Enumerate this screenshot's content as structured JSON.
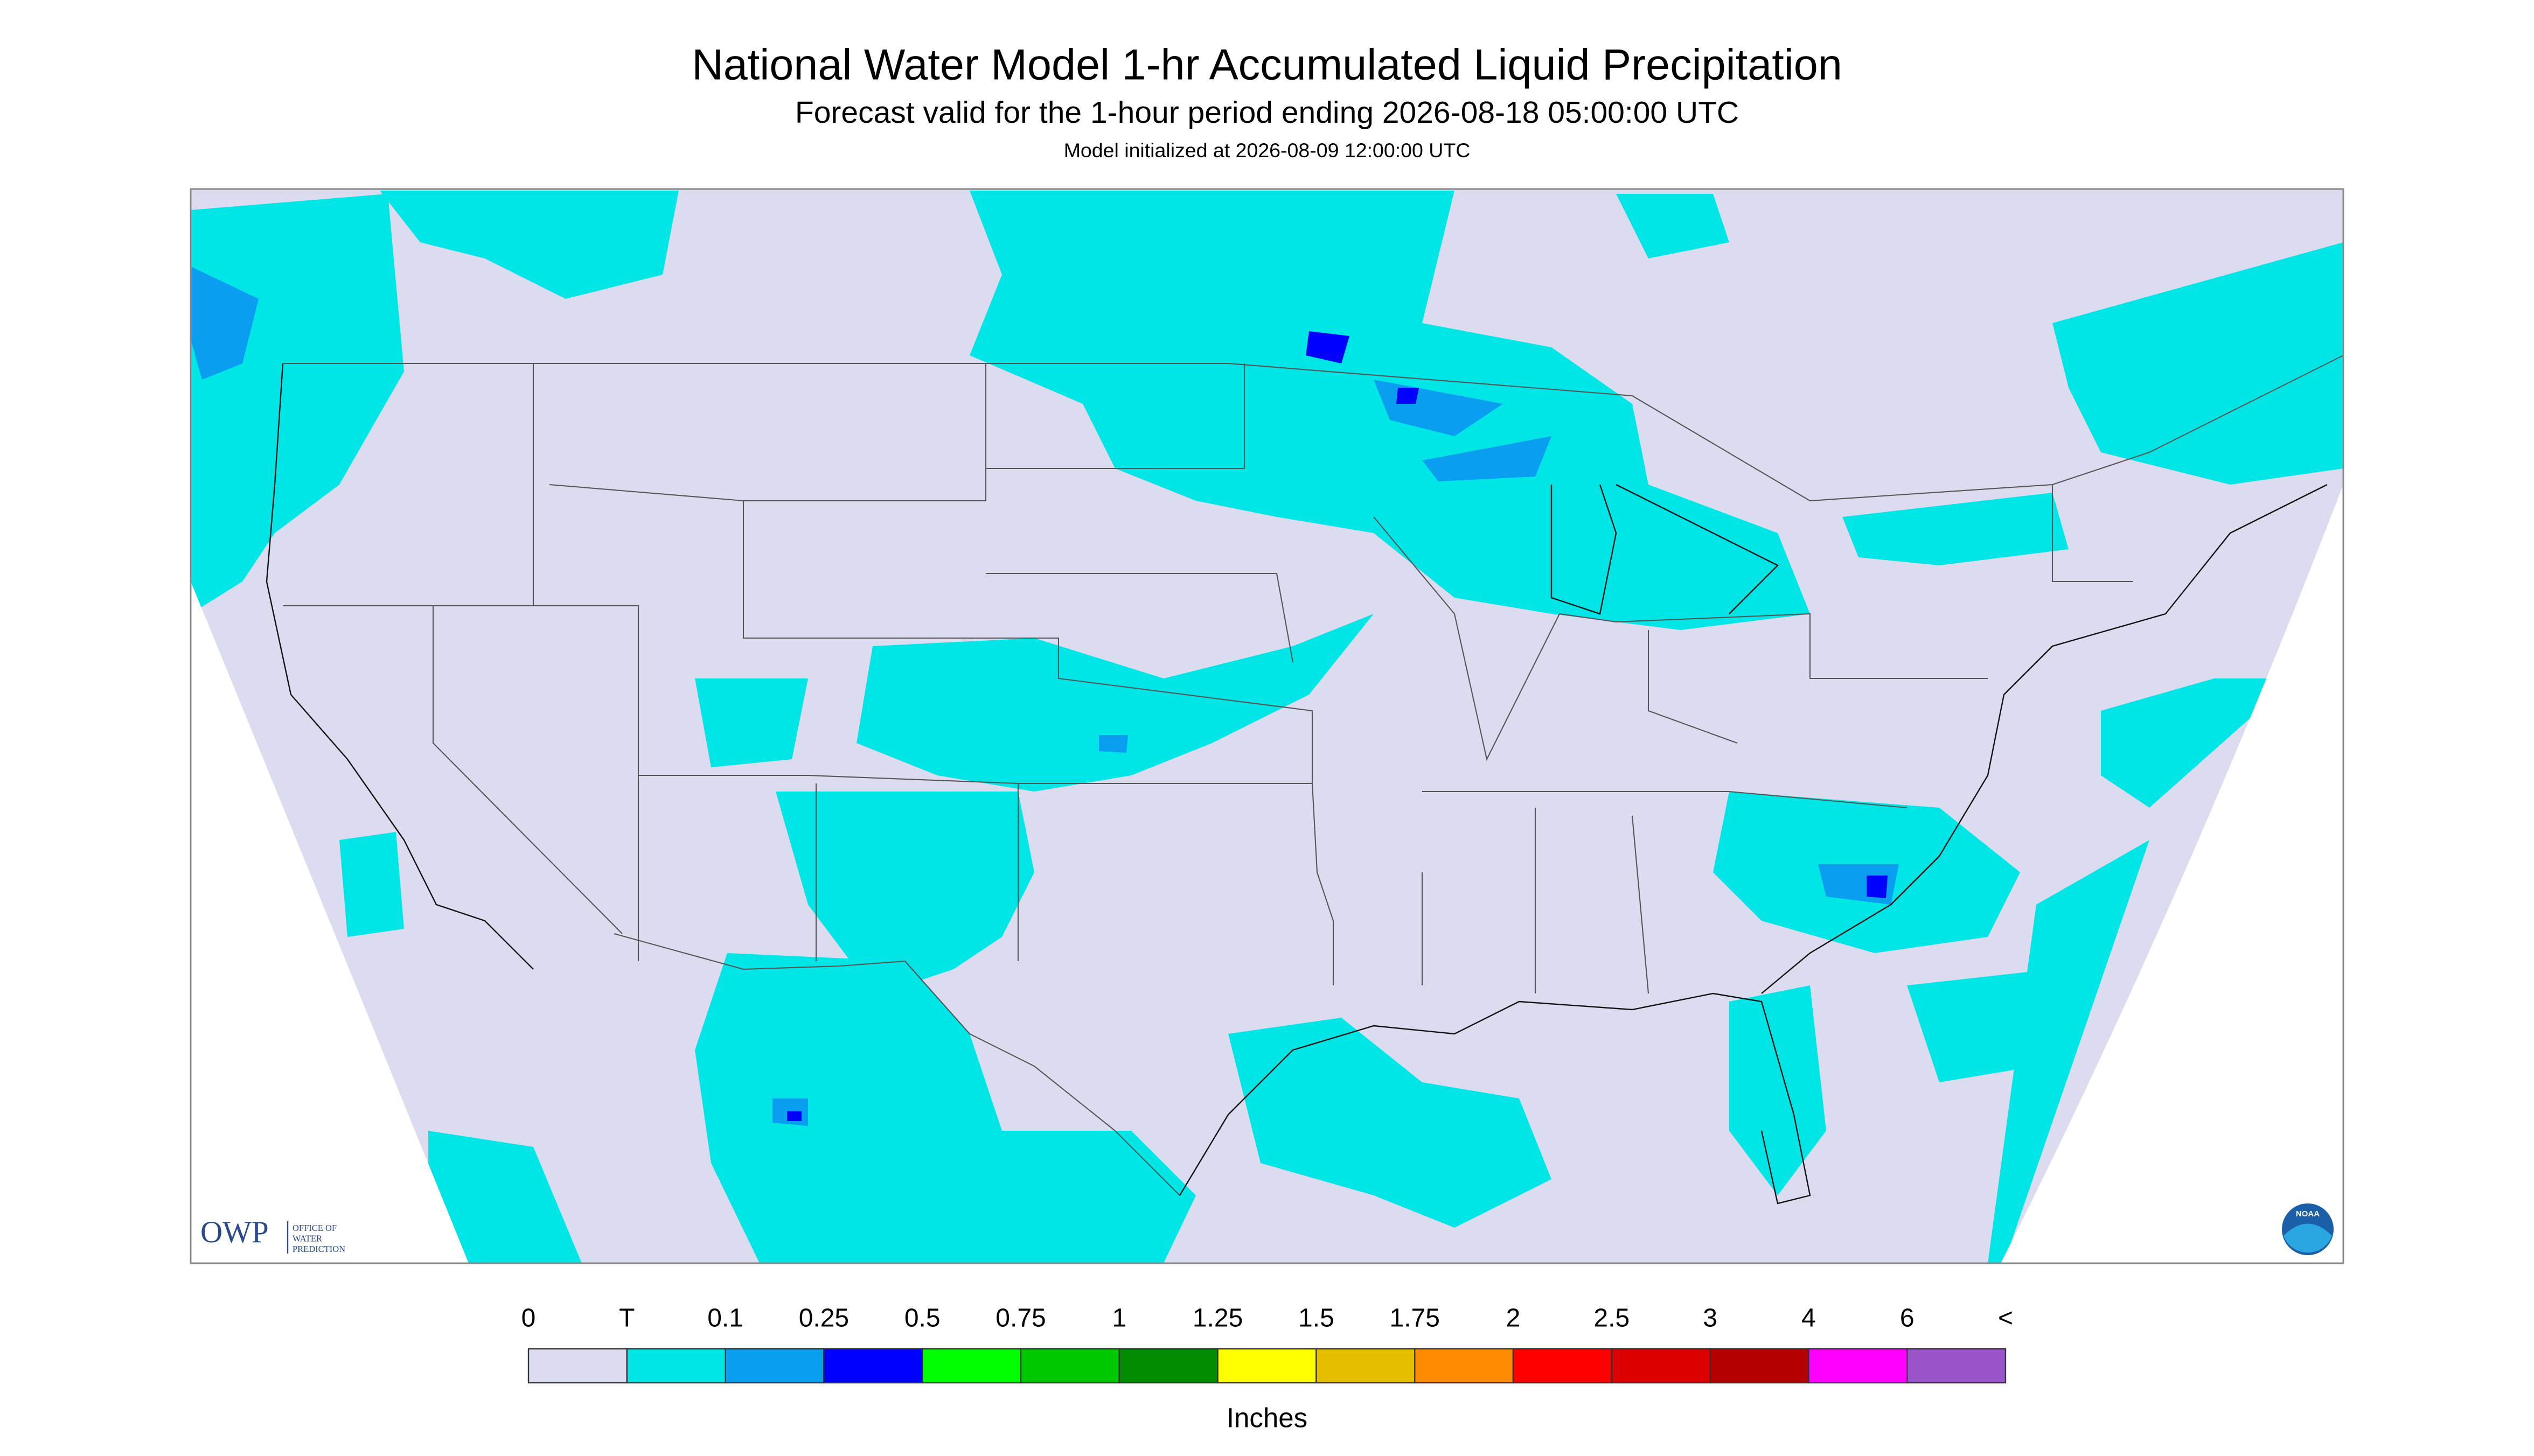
{
  "header": {
    "title": "National Water Model 1-hr Accumulated Liquid Precipitation",
    "subtitle": "Forecast valid for the 1-hour period ending 2026-08-18 05:00:00 UTC",
    "note": "Model initialized at 2026-08-09 12:00:00 UTC"
  },
  "legend": {
    "labels": [
      "0",
      "T",
      "0.1",
      "0.25",
      "0.5",
      "0.75",
      "1",
      "1.25",
      "1.5",
      "1.75",
      "2",
      "2.5",
      "3",
      "4",
      "6",
      "<"
    ],
    "colors": [
      "#dcdcf0",
      "#00e6e6",
      "#0a9ef0",
      "#0000ff",
      "#00ff00",
      "#00c800",
      "#008c00",
      "#ffff00",
      "#e6be00",
      "#ff8c00",
      "#ff0000",
      "#dc0000",
      "#b40000",
      "#ff00ff",
      "#9955c9"
    ],
    "unit": "Inches"
  },
  "logos": {
    "owp": "OWP",
    "owp_lines": [
      "OFFICE OF",
      "WATER",
      "PREDICTION"
    ],
    "noaa": "NOAA"
  }
}
